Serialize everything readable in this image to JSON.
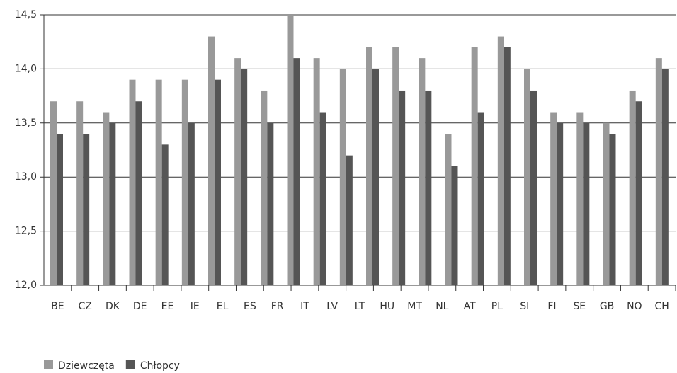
{
  "chart_data": {
    "type": "bar",
    "categories": [
      "BE",
      "CZ",
      "DK",
      "DE",
      "EE",
      "IE",
      "EL",
      "ES",
      "FR",
      "IT",
      "LV",
      "LT",
      "HU",
      "MT",
      "NL",
      "AT",
      "PL",
      "SI",
      "FI",
      "SE",
      "GB",
      "NO",
      "CH",
      null
    ],
    "series": [
      {
        "name": "Dziewczęta",
        "color": "#999999",
        "values": [
          13.7,
          13.7,
          13.6,
          13.9,
          13.9,
          13.9,
          14.3,
          14.1,
          13.8,
          14.5,
          14.1,
          14.0,
          14.2,
          14.2,
          14.1,
          13.4,
          14.2,
          14.3,
          14.0,
          13.6,
          13.6,
          13.5,
          13.8,
          14.1
        ]
      },
      {
        "name": "Chłopcy",
        "color": "#555555",
        "values": [
          13.4,
          13.4,
          13.5,
          13.7,
          13.3,
          13.5,
          13.9,
          14.0,
          13.5,
          14.1,
          13.6,
          13.2,
          14.0,
          13.8,
          13.8,
          13.1,
          13.6,
          14.2,
          13.8,
          13.5,
          13.5,
          13.4,
          13.7,
          14.0
        ]
      }
    ],
    "ylim": [
      12.0,
      14.5
    ],
    "yticks": [
      {
        "value": 12.0,
        "label": "12,0"
      },
      {
        "value": 12.5,
        "label": "12,5"
      },
      {
        "value": 13.0,
        "label": "13,0"
      },
      {
        "value": 13.5,
        "label": "13,5"
      },
      {
        "value": 14.0,
        "label": "14,0"
      },
      {
        "value": 14.5,
        "label": "14,5"
      }
    ],
    "grid": true,
    "legend": "bottom-left"
  }
}
